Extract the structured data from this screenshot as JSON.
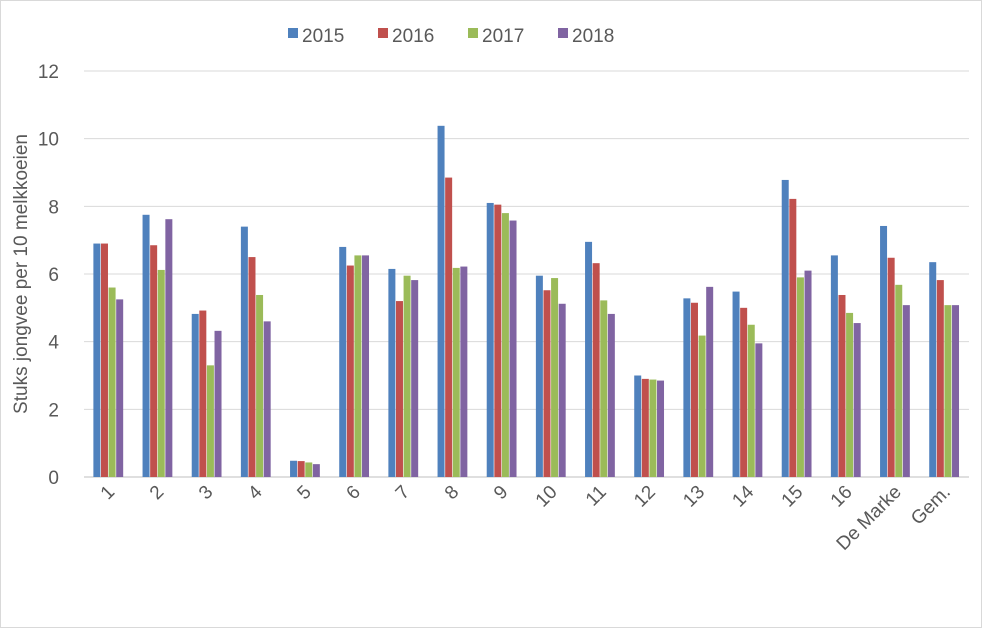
{
  "chart_data": {
    "type": "bar",
    "title": "",
    "xlabel": "",
    "ylabel": "Stuks jongvee per 10 melkkoeien",
    "ylim": [
      0,
      12
    ],
    "yticks": [
      "0",
      "2",
      "4",
      "6",
      "8",
      "10",
      "12"
    ],
    "grid": true,
    "legend_position": "top",
    "categories": [
      "1",
      "2",
      "3",
      "4",
      "5",
      "6",
      "7",
      "8",
      "9",
      "10",
      "11",
      "12",
      "13",
      "14",
      "15",
      "16",
      "De Marke",
      "Gem."
    ],
    "series": [
      {
        "name": "2015",
        "color": "#4f81bd",
        "values": [
          6.9,
          7.75,
          4.82,
          7.4,
          0.48,
          6.8,
          6.15,
          10.38,
          8.1,
          5.95,
          6.95,
          3.0,
          5.28,
          5.48,
          8.78,
          6.55,
          7.42,
          6.35
        ]
      },
      {
        "name": "2016",
        "color": "#c0504d",
        "values": [
          6.9,
          6.85,
          4.92,
          6.5,
          0.47,
          6.25,
          5.2,
          8.85,
          8.05,
          5.52,
          6.32,
          2.9,
          5.15,
          5.0,
          8.22,
          5.38,
          6.48,
          5.82
        ]
      },
      {
        "name": "2017",
        "color": "#9bbb59",
        "values": [
          5.6,
          6.12,
          3.3,
          5.38,
          0.43,
          6.55,
          5.95,
          6.18,
          7.8,
          5.88,
          5.22,
          2.88,
          4.18,
          4.5,
          5.9,
          4.85,
          5.68,
          5.08
        ]
      },
      {
        "name": "2018",
        "color": "#8064a2",
        "values": [
          5.25,
          7.62,
          4.32,
          4.6,
          0.38,
          6.55,
          5.82,
          6.22,
          7.58,
          5.12,
          4.82,
          2.85,
          5.62,
          3.95,
          6.1,
          4.55,
          5.08,
          5.08
        ]
      }
    ]
  }
}
